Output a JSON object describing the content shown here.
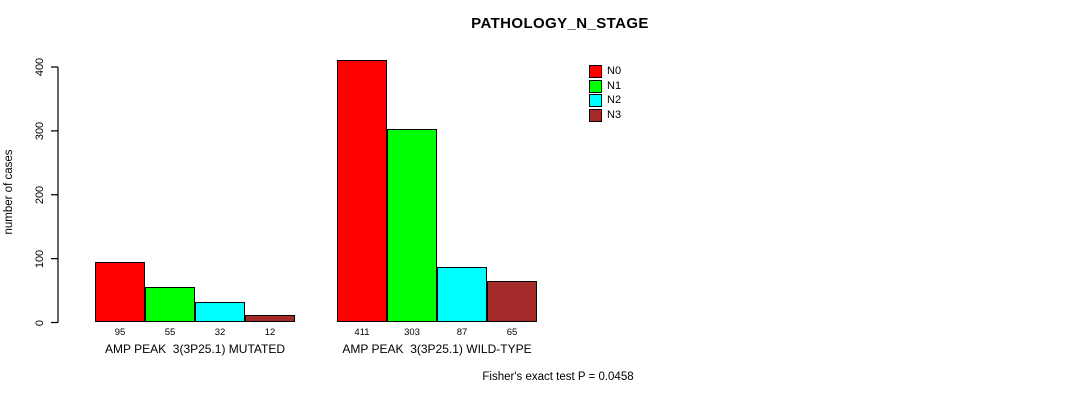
{
  "chart_data": {
    "type": "bar",
    "title": "PATHOLOGY_N_STAGE",
    "ylabel": "number of cases",
    "xlabel": "",
    "ylim": [
      0,
      400
    ],
    "yticks": [
      0,
      100,
      200,
      300,
      400
    ],
    "grid": false,
    "legend_position": "top-right",
    "categories": [
      "AMP PEAK  3(3P25.1) MUTATED",
      "AMP PEAK  3(3P25.1) WILD-TYPE"
    ],
    "series": [
      {
        "name": "N0",
        "color": "#FF0000",
        "values": [
          95,
          411
        ]
      },
      {
        "name": "N1",
        "color": "#00FF00",
        "values": [
          55,
          303
        ]
      },
      {
        "name": "N2",
        "color": "#00FFFF",
        "values": [
          32,
          87
        ]
      },
      {
        "name": "N3",
        "color": "#A52A2A",
        "values": [
          12,
          65
        ]
      }
    ],
    "bar_value_labels": [
      [
        "95",
        "55",
        "32",
        "12"
      ],
      [
        "411",
        "303",
        "87",
        "65"
      ]
    ],
    "annotation": "Fisher's exact test P = 0.0458"
  }
}
